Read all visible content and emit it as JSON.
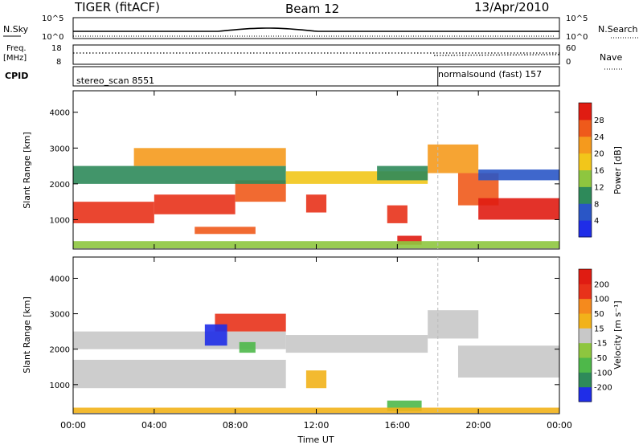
{
  "header": {
    "title": "TIGER (fitACF)",
    "beam": "Beam 12",
    "date": "13/Apr/2010"
  },
  "strips": {
    "nsky_label": "N.Sky",
    "nsky_ticks": [
      "10^5",
      "10^0"
    ],
    "nsearch_label": "N.Search",
    "nsearch_ticks": [
      "10^5",
      "10^0"
    ],
    "freq_label": "Freq.",
    "freq_unit": "[MHz]",
    "freq_ticks": [
      "18",
      "8"
    ],
    "nave_label": "Nave",
    "nave_ticks": [
      "60",
      "0"
    ],
    "cpid_label": "CPID",
    "cpid_segments": [
      {
        "name": "stereo_scan 8551",
        "start_hour": 0.0
      },
      {
        "name": "normalsound (fast) 157",
        "start_hour": 18.0
      }
    ]
  },
  "chart_data": [
    {
      "type": "heatmap",
      "panel": "power",
      "ylabel": "Slant Range [km]",
      "ylim": [
        180,
        4600
      ],
      "yticks": [
        "1000",
        "2000",
        "3000",
        "4000"
      ],
      "xlim_hours": [
        0,
        24
      ],
      "colorbar": {
        "label": "Power [dB]",
        "ticks": [
          "4",
          "8",
          "12",
          "16",
          "20",
          "24",
          "28"
        ],
        "colors": [
          "#1f2de8",
          "#2a56c6",
          "#2e8a5a",
          "#8ec63f",
          "#f2c61a",
          "#f59a1d",
          "#ef5a1b",
          "#e01c12"
        ]
      },
      "bands": [
        {
          "start": 0.0,
          "end": 4.0,
          "lo": 900,
          "hi": 1500,
          "color": "#e8321a"
        },
        {
          "start": 4.0,
          "end": 8.0,
          "lo": 1150,
          "hi": 1700,
          "color": "#e8321a"
        },
        {
          "start": 8.0,
          "end": 10.5,
          "lo": 1500,
          "hi": 2100,
          "color": "#ef5a1b"
        },
        {
          "start": 0.0,
          "end": 10.5,
          "lo": 2000,
          "hi": 2500,
          "color": "#2e8a5a"
        },
        {
          "start": 3.0,
          "end": 10.5,
          "lo": 2500,
          "hi": 3000,
          "color": "#f59a1d"
        },
        {
          "start": 10.5,
          "end": 17.5,
          "lo": 2000,
          "hi": 2350,
          "color": "#f2c61a"
        },
        {
          "start": 15.0,
          "end": 17.5,
          "lo": 2100,
          "hi": 2500,
          "color": "#2e8a5a"
        },
        {
          "start": 17.5,
          "end": 20.0,
          "lo": 2300,
          "hi": 3100,
          "color": "#f59a1d"
        },
        {
          "start": 19.0,
          "end": 21.0,
          "lo": 1400,
          "hi": 2300,
          "color": "#ef5a1b"
        },
        {
          "start": 20.0,
          "end": 24.0,
          "lo": 1000,
          "hi": 1600,
          "color": "#e01c12"
        },
        {
          "start": 20.0,
          "end": 24.0,
          "lo": 2100,
          "hi": 2400,
          "color": "#2a56c6"
        },
        {
          "start": 11.5,
          "end": 12.5,
          "lo": 1200,
          "hi": 1700,
          "color": "#e8321a"
        },
        {
          "start": 15.5,
          "end": 16.5,
          "lo": 900,
          "hi": 1400,
          "color": "#e8321a"
        },
        {
          "start": 6.0,
          "end": 9.0,
          "lo": 600,
          "hi": 800,
          "color": "#ef5a1b"
        },
        {
          "start": 16.0,
          "end": 17.2,
          "lo": 300,
          "hi": 550,
          "color": "#e01c12"
        },
        {
          "start": 0.0,
          "end": 24.0,
          "lo": 200,
          "hi": 400,
          "color": "#8ec63f"
        }
      ]
    },
    {
      "type": "heatmap",
      "panel": "velocity",
      "ylabel": "Slant Range [km]",
      "ylim": [
        180,
        4600
      ],
      "yticks": [
        "1000",
        "2000",
        "3000",
        "4000"
      ],
      "xlim_hours": [
        0,
        24
      ],
      "xlabel": "Time UT",
      "xticks": [
        "00:00",
        "04:00",
        "08:00",
        "12:00",
        "16:00",
        "20:00",
        "00:00"
      ],
      "colorbar": {
        "label": "Velocity [m s⁻¹]",
        "ticks": [
          "200",
          "100",
          "50",
          "15",
          "-15",
          "-50",
          "-100",
          "-200"
        ],
        "colors": [
          "#1f2de8",
          "#2e8a5a",
          "#4eb84a",
          "#8ec63f",
          "#c8c8c8",
          "#f2b21a",
          "#f58a1d",
          "#e8321a",
          "#e01c12"
        ]
      },
      "bands": [
        {
          "start": 0.0,
          "end": 10.5,
          "lo": 900,
          "hi": 1700,
          "color": "#c8c8c8"
        },
        {
          "start": 0.0,
          "end": 10.5,
          "lo": 2000,
          "hi": 2500,
          "color": "#c8c8c8"
        },
        {
          "start": 10.5,
          "end": 17.5,
          "lo": 1900,
          "hi": 2400,
          "color": "#c8c8c8"
        },
        {
          "start": 17.5,
          "end": 20.0,
          "lo": 2300,
          "hi": 3100,
          "color": "#c8c8c8"
        },
        {
          "start": 19.0,
          "end": 24.0,
          "lo": 1200,
          "hi": 2100,
          "color": "#c8c8c8"
        },
        {
          "start": 7.0,
          "end": 10.5,
          "lo": 2500,
          "hi": 3000,
          "color": "#e8321a"
        },
        {
          "start": 6.5,
          "end": 7.6,
          "lo": 2100,
          "hi": 2700,
          "color": "#1f2de8"
        },
        {
          "start": 8.2,
          "end": 9.0,
          "lo": 1900,
          "hi": 2200,
          "color": "#4eb84a"
        },
        {
          "start": 11.5,
          "end": 12.5,
          "lo": 900,
          "hi": 1400,
          "color": "#f2b21a"
        },
        {
          "start": 15.5,
          "end": 17.2,
          "lo": 250,
          "hi": 550,
          "color": "#4eb84a"
        },
        {
          "start": 0.0,
          "end": 24.0,
          "lo": 200,
          "hi": 350,
          "color": "#f2b21a"
        }
      ]
    }
  ]
}
